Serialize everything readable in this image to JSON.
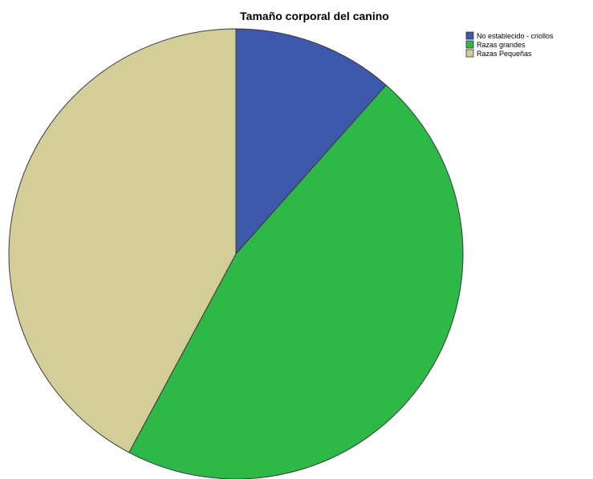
{
  "chart_data": {
    "type": "pie",
    "title": "Tamaño corporal del canino",
    "categories": [
      "No establecido - criollos",
      "Razas grandes",
      "Razas Pequeñas"
    ],
    "values": [
      11.5,
      46.3,
      42.2
    ],
    "colors": [
      "#3e58ac",
      "#2eb848",
      "#d3ce97"
    ],
    "start": "12 o'clock",
    "direction": "clockwise",
    "legend": "top-right",
    "slice_border_color": "#3a3a3a"
  }
}
